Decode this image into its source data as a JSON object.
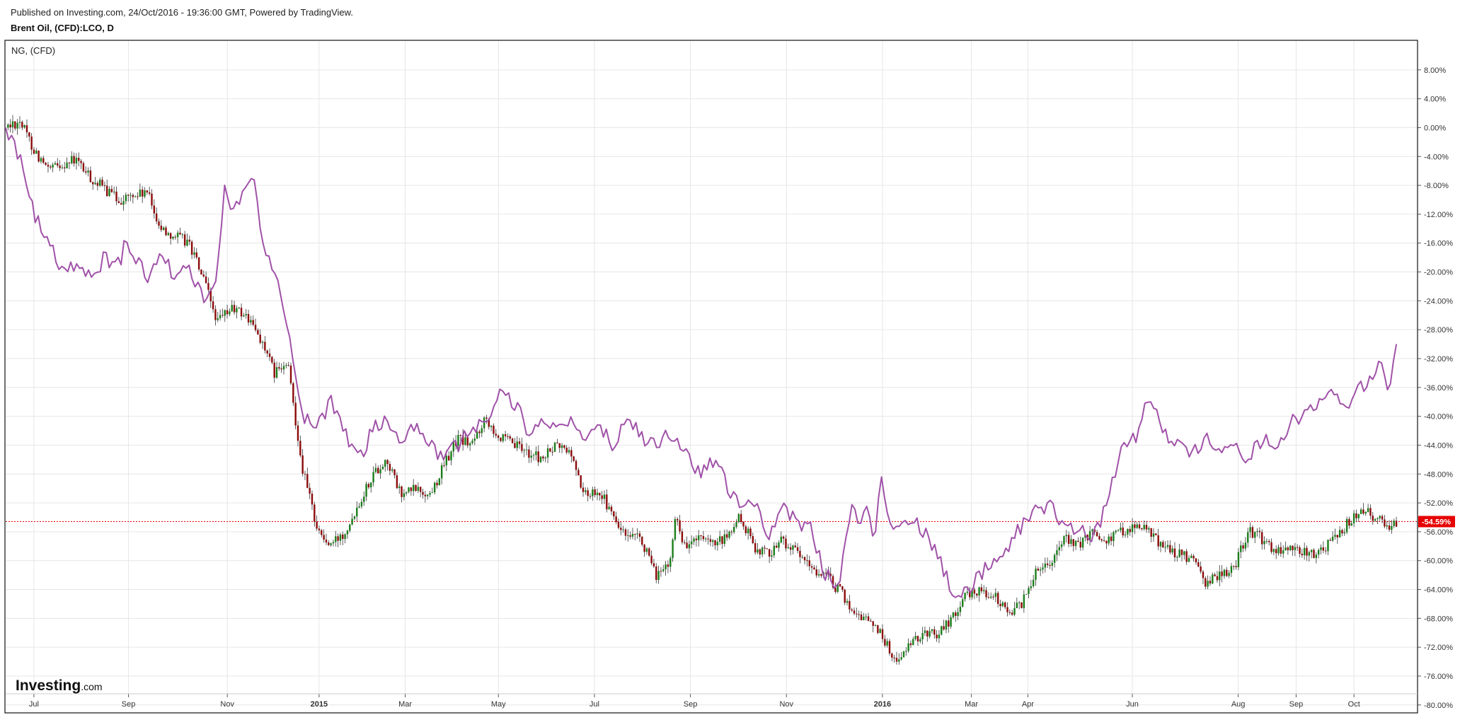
{
  "header": {
    "published": "Published on Investing.com, 24/Oct/2016 - 19:36:00 GMT, Powered by TradingView.",
    "symbol": "Brent Oil, (CFD):LCO, D"
  },
  "legend": {
    "overlay": "NG,  (CFD)"
  },
  "logo": {
    "main": "Investing",
    "suffix": ".com"
  },
  "colors": {
    "up": "#1a7d1a",
    "down": "#8b0a0a",
    "overlay": "#a052a8",
    "current": "#e60000",
    "grid": "#e6e6e6",
    "frame": "#111111"
  },
  "chart_data": {
    "type": "line",
    "ylim": [
      -81,
      12
    ],
    "y_ticks": [
      "8.00%",
      "4.00%",
      "0.00%",
      "-4.00%",
      "-8.00%",
      "-12.00%",
      "-16.00%",
      "-20.00%",
      "-24.00%",
      "-28.00%",
      "-32.00%",
      "-36.00%",
      "-40.00%",
      "-44.00%",
      "-48.00%",
      "-52.00%",
      "-56.00%",
      "-60.00%",
      "-64.00%",
      "-68.00%",
      "-72.00%",
      "-76.00%",
      "-80.00%"
    ],
    "y_tick_values": [
      8,
      4,
      0,
      -4,
      -8,
      -12,
      -16,
      -20,
      -24,
      -28,
      -32,
      -36,
      -40,
      -44,
      -48,
      -52,
      -56,
      -60,
      -64,
      -68,
      -72,
      -76,
      -80
    ],
    "x_ticks": [
      {
        "label": "Jul",
        "t": 0.02,
        "bold": false
      },
      {
        "label": "Sep",
        "t": 0.087,
        "bold": false
      },
      {
        "label": "Nov",
        "t": 0.157,
        "bold": false
      },
      {
        "label": "2015",
        "t": 0.222,
        "bold": true
      },
      {
        "label": "Mar",
        "t": 0.283,
        "bold": false
      },
      {
        "label": "May",
        "t": 0.349,
        "bold": false
      },
      {
        "label": "Jul",
        "t": 0.417,
        "bold": false
      },
      {
        "label": "Sep",
        "t": 0.485,
        "bold": false
      },
      {
        "label": "Nov",
        "t": 0.553,
        "bold": false
      },
      {
        "label": "2016",
        "t": 0.621,
        "bold": true
      },
      {
        "label": "Mar",
        "t": 0.684,
        "bold": false
      },
      {
        "label": "Apr",
        "t": 0.724,
        "bold": false
      },
      {
        "label": "Jun",
        "t": 0.798,
        "bold": false
      },
      {
        "label": "Aug",
        "t": 0.873,
        "bold": false
      },
      {
        "label": "Sep",
        "t": 0.914,
        "bold": false
      },
      {
        "label": "Oct",
        "t": 0.955,
        "bold": false
      }
    ],
    "current_value": -54.59,
    "current_label": "-54.59%",
    "series": [
      {
        "name": "LCO",
        "style": "candles",
        "t": [
          0,
          0.01,
          0.02,
          0.03,
          0.04,
          0.05,
          0.06,
          0.07,
          0.08,
          0.09,
          0.1,
          0.11,
          0.12,
          0.13,
          0.14,
          0.15,
          0.16,
          0.17,
          0.18,
          0.19,
          0.2,
          0.21,
          0.22,
          0.225,
          0.23,
          0.24,
          0.25,
          0.26,
          0.27,
          0.28,
          0.29,
          0.3,
          0.31,
          0.32,
          0.33,
          0.34,
          0.35,
          0.36,
          0.37,
          0.38,
          0.39,
          0.4,
          0.41,
          0.42,
          0.43,
          0.44,
          0.45,
          0.46,
          0.47,
          0.475,
          0.48,
          0.49,
          0.5,
          0.51,
          0.52,
          0.53,
          0.54,
          0.55,
          0.56,
          0.57,
          0.58,
          0.59,
          0.6,
          0.61,
          0.62,
          0.625,
          0.63,
          0.64,
          0.65,
          0.66,
          0.67,
          0.68,
          0.69,
          0.7,
          0.71,
          0.72,
          0.73,
          0.74,
          0.75,
          0.76,
          0.77,
          0.78,
          0.79,
          0.8,
          0.81,
          0.82,
          0.83,
          0.84,
          0.85,
          0.86,
          0.87,
          0.88,
          0.89,
          0.9,
          0.91,
          0.92,
          0.93,
          0.94,
          0.95,
          0.96,
          0.97,
          0.98,
          0.985
        ],
        "values": [
          0,
          1,
          -3,
          -6,
          -5,
          -4.5,
          -7,
          -8.5,
          -10,
          -9.5,
          -9,
          -14,
          -15,
          -16,
          -21,
          -27,
          -25,
          -26,
          -29,
          -34,
          -33,
          -47,
          -55,
          -57,
          -58,
          -56,
          -52,
          -48,
          -46,
          -51,
          -50,
          -51,
          -47,
          -43,
          -44,
          -40,
          -43,
          -44,
          -45,
          -46,
          -44,
          -45,
          -51,
          -50,
          -54,
          -57,
          -57,
          -62,
          -61,
          -53,
          -58,
          -57,
          -58,
          -57,
          -54,
          -58,
          -59,
          -57,
          -59,
          -61,
          -62,
          -64,
          -67,
          -68,
          -70,
          -72,
          -74,
          -72,
          -70,
          -70,
          -68,
          -65,
          -64,
          -65,
          -67,
          -66,
          -61,
          -60,
          -57,
          -58,
          -56,
          -57,
          -56,
          -55,
          -56,
          -58,
          -59,
          -60,
          -63,
          -62,
          -61,
          -56,
          -57,
          -59,
          -58,
          -59,
          -59,
          -57,
          -55,
          -53,
          -54,
          -55,
          -54.6
        ]
      },
      {
        "name": "NG",
        "style": "line",
        "t": [
          0,
          0.01,
          0.02,
          0.03,
          0.04,
          0.05,
          0.06,
          0.07,
          0.08,
          0.085,
          0.09,
          0.1,
          0.11,
          0.12,
          0.13,
          0.14,
          0.15,
          0.155,
          0.16,
          0.17,
          0.175,
          0.18,
          0.19,
          0.195,
          0.2,
          0.205,
          0.21,
          0.22,
          0.23,
          0.24,
          0.25,
          0.26,
          0.27,
          0.28,
          0.29,
          0.3,
          0.31,
          0.32,
          0.33,
          0.34,
          0.35,
          0.36,
          0.37,
          0.38,
          0.39,
          0.4,
          0.41,
          0.42,
          0.43,
          0.44,
          0.45,
          0.46,
          0.47,
          0.48,
          0.49,
          0.5,
          0.51,
          0.52,
          0.53,
          0.54,
          0.55,
          0.56,
          0.57,
          0.58,
          0.59,
          0.6,
          0.605,
          0.61,
          0.615,
          0.62,
          0.625,
          0.63,
          0.64,
          0.65,
          0.66,
          0.67,
          0.68,
          0.69,
          0.7,
          0.71,
          0.72,
          0.73,
          0.74,
          0.75,
          0.76,
          0.77,
          0.78,
          0.79,
          0.8,
          0.81,
          0.82,
          0.83,
          0.84,
          0.85,
          0.86,
          0.87,
          0.88,
          0.89,
          0.9,
          0.91,
          0.92,
          0.93,
          0.94,
          0.95,
          0.96,
          0.97,
          0.975,
          0.98,
          0.985
        ],
        "values": [
          0,
          -4,
          -12,
          -16,
          -20,
          -19,
          -21,
          -18,
          -19,
          -16,
          -17,
          -21,
          -17,
          -21,
          -19,
          -24,
          -21,
          -7,
          -12,
          -9,
          -6,
          -14,
          -20,
          -24,
          -28,
          -34,
          -40,
          -42,
          -38,
          -42,
          -46,
          -42,
          -40,
          -44,
          -41,
          -44,
          -46,
          -44,
          -42,
          -41,
          -37,
          -38,
          -42,
          -40,
          -42,
          -41,
          -44,
          -41,
          -44,
          -40,
          -43,
          -44,
          -42,
          -45,
          -48,
          -46,
          -49,
          -53,
          -52,
          -57,
          -52,
          -55,
          -55,
          -62,
          -63,
          -52,
          -56,
          -53,
          -57,
          -48,
          -53,
          -56,
          -54,
          -56,
          -59,
          -64,
          -64,
          -62,
          -60,
          -58,
          -55,
          -53,
          -52,
          -56,
          -55,
          -57,
          -52,
          -45,
          -43,
          -37,
          -42,
          -44,
          -45,
          -43,
          -45,
          -44,
          -46,
          -43,
          -45,
          -41,
          -40,
          -38,
          -37,
          -39,
          -36,
          -34,
          -32,
          -37,
          -30
        ]
      }
    ]
  }
}
